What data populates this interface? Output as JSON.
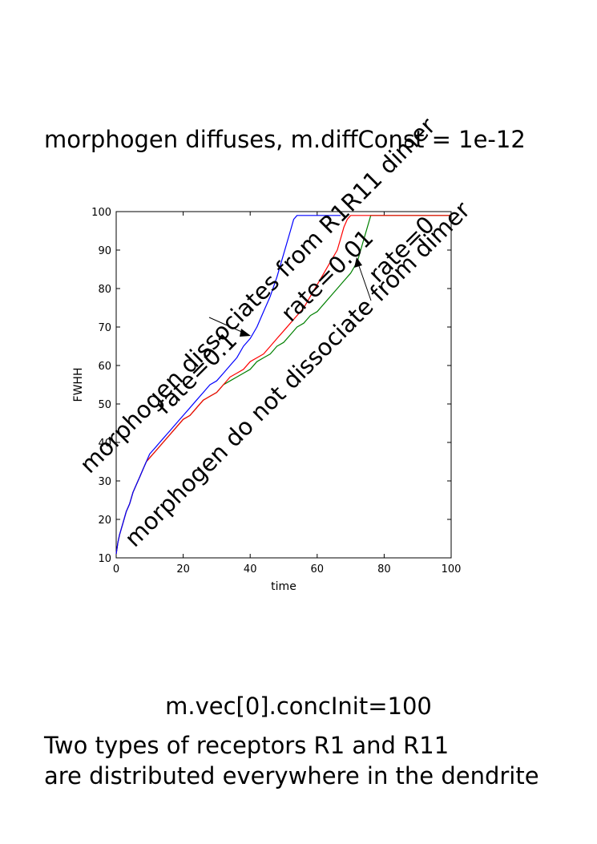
{
  "page": {
    "title": "morphogen diffuses, m.diffConst = 1e-12",
    "footer_line1": "m.vec[0].concInit=100",
    "footer_line2": "Two types of receptors R1 and R11",
    "footer_line3": "are distributed everywhere in the dendrite"
  },
  "annotations": {
    "a1": "morphogen dissociates from R1R11 dimer",
    "a2": "rate=0.1",
    "a3": "rate=0.01",
    "a4": "rate=0",
    "a5": "morphogen do not dissociate from dimer"
  },
  "chart_data": {
    "type": "line",
    "xlabel": "time",
    "ylabel": "FWHH",
    "xlim": [
      0,
      100
    ],
    "ylim": [
      10,
      100
    ],
    "xticks": [
      0,
      20,
      40,
      60,
      80,
      100
    ],
    "yticks": [
      10,
      20,
      30,
      40,
      50,
      60,
      70,
      80,
      90,
      100
    ],
    "grid": false,
    "legend": "none",
    "series": [
      {
        "color": "#0000ff",
        "x": [
          0,
          0.5,
          1,
          2,
          3,
          4,
          5,
          6,
          7,
          8,
          9,
          10,
          11,
          12,
          13,
          14,
          15,
          16,
          18,
          20,
          22,
          24,
          26,
          28,
          30,
          32,
          34,
          36,
          38,
          40,
          42,
          44,
          46,
          48,
          50,
          52,
          53,
          54,
          56,
          60,
          65,
          67
        ],
        "y": [
          11,
          14,
          16,
          19,
          22,
          24,
          27,
          29,
          31,
          33,
          35,
          37,
          38,
          39,
          40,
          41,
          42,
          43,
          45,
          47,
          49,
          51,
          53,
          55,
          56,
          58,
          60,
          62,
          65,
          67,
          70,
          74,
          78,
          83,
          89,
          95,
          98,
          99,
          99,
          99,
          99,
          99
        ]
      },
      {
        "color": "#ff0000",
        "x": [
          0,
          0.5,
          1,
          2,
          3,
          4,
          5,
          6,
          7,
          8,
          9,
          10,
          11,
          12,
          14,
          16,
          18,
          20,
          22,
          24,
          26,
          28,
          30,
          32,
          34,
          36,
          38,
          40,
          42,
          44,
          46,
          48,
          50,
          52,
          54,
          56,
          58,
          60,
          62,
          64,
          66,
          67,
          68,
          69,
          70,
          100
        ],
        "y": [
          11,
          14,
          16,
          19,
          22,
          24,
          27,
          29,
          31,
          33,
          35,
          36,
          37,
          38,
          40,
          42,
          44,
          46,
          47,
          49,
          51,
          52,
          53,
          55,
          57,
          58,
          59,
          61,
          62,
          63,
          65,
          67,
          69,
          71,
          73,
          75,
          78,
          81,
          84,
          87,
          90,
          93,
          96,
          98,
          99,
          99
        ]
      },
      {
        "color": "#008000",
        "x": [
          0,
          0.5,
          1,
          2,
          3,
          4,
          5,
          6,
          7,
          8,
          9,
          10,
          11,
          12,
          14,
          16,
          18,
          20,
          22,
          24,
          26,
          28,
          30,
          32,
          34,
          36,
          38,
          40,
          42,
          44,
          46,
          48,
          50,
          52,
          54,
          56,
          58,
          60,
          62,
          64,
          66,
          68,
          70,
          72,
          73,
          74,
          75,
          76,
          100
        ],
        "y": [
          11,
          14,
          16,
          19,
          22,
          24,
          27,
          29,
          31,
          33,
          35,
          36,
          37,
          38,
          40,
          42,
          44,
          46,
          47,
          49,
          51,
          52,
          53,
          55,
          56,
          57,
          58,
          59,
          61,
          62,
          63,
          65,
          66,
          68,
          70,
          71,
          73,
          74,
          76,
          78,
          80,
          82,
          84,
          87,
          90,
          93,
          96,
          99,
          99
        ]
      }
    ]
  }
}
